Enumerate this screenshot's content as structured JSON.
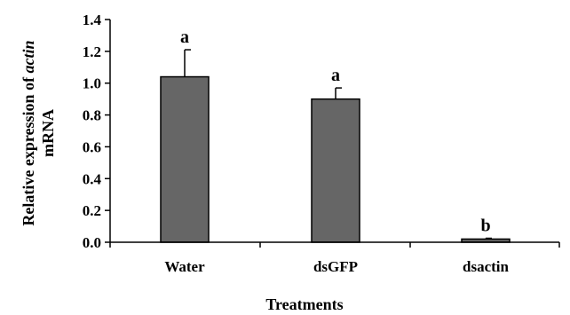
{
  "chart_data": {
    "type": "bar",
    "categories": [
      "Water",
      "dsGFP",
      "dsactin"
    ],
    "values": [
      1.04,
      0.9,
      0.02
    ],
    "errors": [
      0.17,
      0.07,
      0.005
    ],
    "significance": [
      "a",
      "a",
      "b"
    ],
    "xlabel": "Treatments",
    "ylabel_prefix": "Relative expression of ",
    "ylabel_italic": "actin",
    "ylabel_line2": "mRNA",
    "ylim": [
      0,
      1.4
    ],
    "yticks": [
      "0.0",
      "0.2",
      "0.4",
      "0.6",
      "0.8",
      "1.0",
      "1.2",
      "1.4"
    ],
    "grid": false,
    "bar_color": "#666666"
  }
}
